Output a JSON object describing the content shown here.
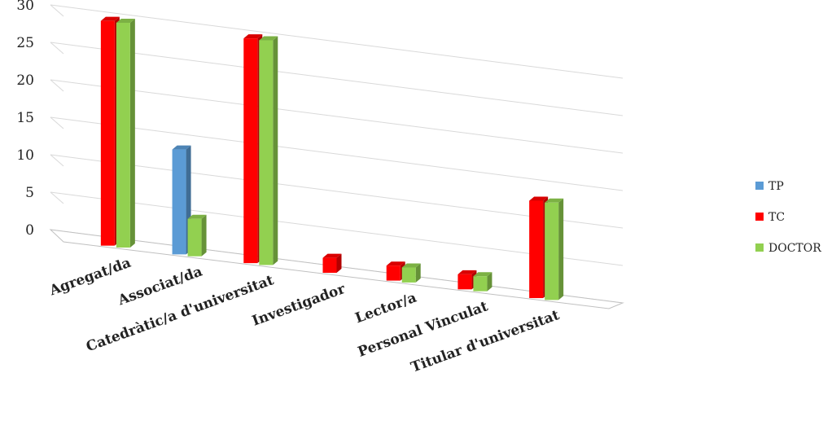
{
  "chart_data": {
    "type": "bar",
    "title": "",
    "xlabel": "",
    "ylabel": "",
    "ylim": [
      0,
      30
    ],
    "yticks": [
      "0",
      "5",
      "10",
      "15",
      "20",
      "25",
      "30"
    ],
    "categories": [
      "Agregat/da",
      "Associat/da",
      "Catedràtic/a d'universitat",
      "Investigador",
      "Lector/a",
      "Personal Vinculat",
      "Titular d'universitat"
    ],
    "series": [
      {
        "name": "TP",
        "color": "#5b9bd5",
        "values": [
          0,
          14,
          0,
          0,
          0,
          0,
          0
        ]
      },
      {
        "name": "TC",
        "color": "#ff0000",
        "values": [
          30,
          0,
          30,
          2,
          2,
          2,
          13
        ]
      },
      {
        "name": "DOCTOR",
        "color": "#92d050",
        "values": [
          30,
          5,
          30,
          0,
          2,
          2,
          13
        ]
      }
    ],
    "grid": true,
    "legend_position": "right"
  }
}
